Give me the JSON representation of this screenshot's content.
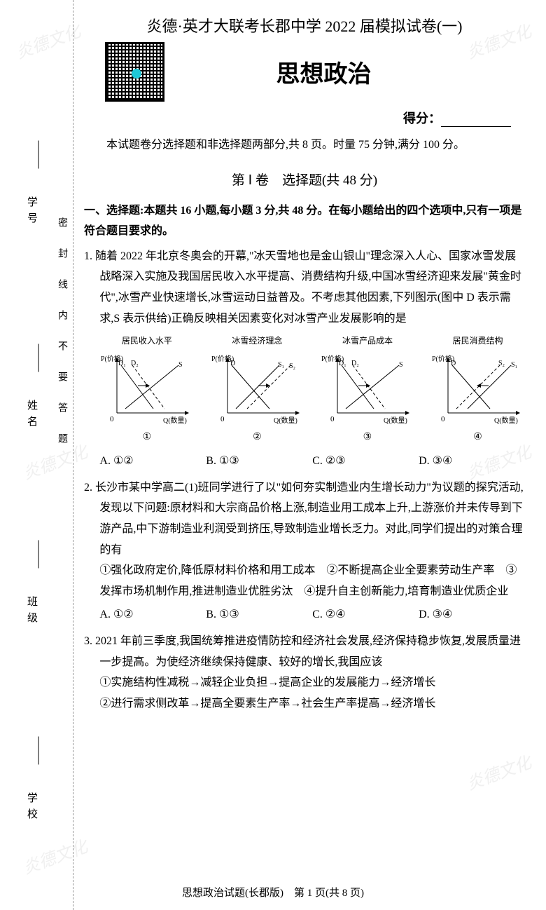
{
  "watermarks": [
    "炎德文化",
    "炎德文化",
    "炎德文化",
    "炎德文化",
    "炎德文化",
    "炎德文化"
  ],
  "header": {
    "title": "炎德·英才大联考长郡中学 2022 届模拟试卷(一)",
    "subject": "思想政治",
    "score_label": "得分：",
    "intro": "本试题卷分选择题和非选择题两部分,共 8 页。时量 75 分钟,满分 100 分。"
  },
  "side": {
    "labels": [
      "学号",
      "姓名",
      "班级",
      "学校"
    ],
    "seal_chars": "密封线内不要答题"
  },
  "section": {
    "title": "第 Ⅰ 卷　选择题(共 48 分)",
    "instructions": "一、选择题:本题共 16 小题,每小题 3 分,共 48 分。在每小题给出的四个选项中,只有一项是符合题目要求的。"
  },
  "q1": {
    "text": "1. 随着 2022 年北京冬奥会的开幕,\"冰天雪地也是金山银山\"理念深入人心、国家冰雪发展战略深入实施及我国居民收入水平提高、消费结构升级,中国冰雪经济迎来发展\"黄金时代\",冰雪产业快速增长,冰雪运动日益普及。不考虑其他因素,下列图示(图中 D 表示需求,S 表示供给)正确反映相关因素变化对冰雪产业发展影响的是",
    "charts": [
      {
        "title": "居民收入水平",
        "num": "①",
        "type": "d_shift_right",
        "ylabel": "P(价格)",
        "xlabel": "Q(数量)"
      },
      {
        "title": "冰雪经济理念",
        "num": "②",
        "type": "s_shift_right",
        "ylabel": "P(价格)",
        "xlabel": "Q(数量)"
      },
      {
        "title": "冰雪产品成本",
        "num": "③",
        "type": "d_shift_right",
        "ylabel": "P(价格)",
        "xlabel": "Q(数量)"
      },
      {
        "title": "居民消费结构",
        "num": "④",
        "type": "s_shift_left",
        "ylabel": "P(价格)",
        "xlabel": "Q(数量)"
      }
    ],
    "chart_style": {
      "width": 135,
      "height": 110,
      "axis_color": "#000",
      "line_color": "#000",
      "dash": "4,3",
      "arrow_size": 5
    },
    "options": {
      "A": "A. ①②",
      "B": "B. ①③",
      "C": "C. ②③",
      "D": "D. ③④"
    }
  },
  "q2": {
    "text": "2. 长沙市某中学高二(1)班同学进行了以\"如何夯实制造业内生增长动力\"为议题的探究活动,发现以下问题:原材料和大宗商品价格上涨,制造业用工成本上升,上游涨价并未传导到下游产品,中下游制造业利润受到挤压,导致制造业增长乏力。对此,同学们提出的对策合理的有",
    "items": "①强化政府定价,降低原材料价格和用工成本　②不断提高企业全要素劳动生产率　③发挥市场机制作用,推进制造业优胜劣汰　④提升自主创新能力,培育制造业优质企业",
    "options": {
      "A": "A. ①②",
      "B": "B. ①③",
      "C": "C. ②④",
      "D": "D. ③④"
    }
  },
  "q3": {
    "text": "3. 2021 年前三季度,我国统筹推进疫情防控和经济社会发展,经济保持稳步恢复,发展质量进一步提高。为使经济继续保持健康、较好的增长,我国应该",
    "item1": "①实施结构性减税→减轻企业负担→提高企业的发展能力→经济增长",
    "item2": "②进行需求侧改革→提高全要素生产率→社会生产率提高→经济增长"
  },
  "footer": "思想政治试题(长郡版)　第 1 页(共 8 页)"
}
